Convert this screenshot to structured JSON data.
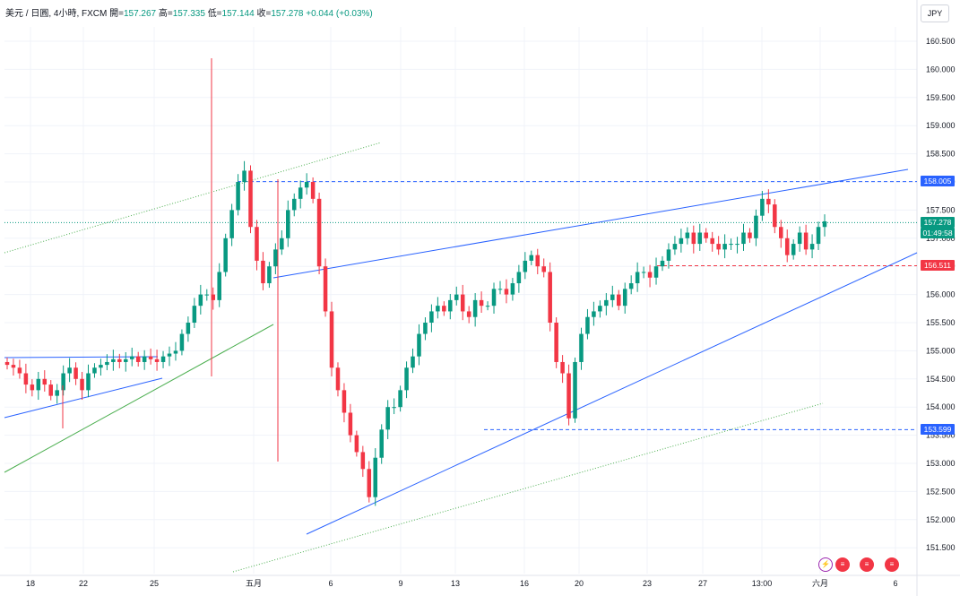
{
  "header": {
    "symbol": "美元 / 日圓, 4小時, FXCM",
    "open_label": "開=",
    "open": "157.267",
    "high_label": "高=",
    "high": "157.335",
    "low_label": "低=",
    "low": "157.144",
    "close_label": "收=",
    "close": "157.278",
    "change": "+0.044 (+0.03%)"
  },
  "currency_button": "JPY",
  "price_axis": {
    "ticks": [
      "160.500",
      "160.000",
      "159.500",
      "159.000",
      "158.500",
      "158.000",
      "157.500",
      "157.000",
      "156.500",
      "156.000",
      "155.500",
      "155.000",
      "154.500",
      "154.000",
      "153.500",
      "153.000",
      "152.500",
      "152.000",
      "151.500"
    ]
  },
  "price_tags": {
    "level_high": "158.005",
    "current_price": "157.278",
    "countdown": "01:49:58",
    "level_mid": "156.511",
    "level_low": "153.599"
  },
  "time_axis": {
    "labels": [
      "18",
      "22",
      "25",
      "五月",
      "6",
      "9",
      "13",
      "16",
      "20",
      "23",
      "27",
      "13:00",
      "六月",
      "6"
    ]
  },
  "event_icons": [
    "lightning-icon",
    "us-flag-icon",
    "us-flag-icon",
    "us-flag-icon"
  ],
  "colors": {
    "up": "#089981",
    "down": "#f23645",
    "trendline": "#2962ff",
    "green_line": "#4caf50",
    "green_dotted": "#4caf50"
  },
  "chart_data": {
    "type": "candlestick",
    "title": "",
    "xlabel": "",
    "ylabel": "",
    "ylim": [
      151.2,
      160.8
    ],
    "price_levels": [
      158.005,
      156.511,
      153.599
    ],
    "last_price": 157.278,
    "closes": [
      154.75,
      154.7,
      154.6,
      154.4,
      154.3,
      154.5,
      154.4,
      154.2,
      154.3,
      154.6,
      154.7,
      154.5,
      154.3,
      154.6,
      154.7,
      154.75,
      154.8,
      154.85,
      154.8,
      154.85,
      154.9,
      154.8,
      154.9,
      154.85,
      154.8,
      154.9,
      154.95,
      155.0,
      155.3,
      155.5,
      155.8,
      156.0,
      156.0,
      155.9,
      156.4,
      157.0,
      157.5,
      158.0,
      158.2,
      157.2,
      156.6,
      156.2,
      156.5,
      156.8,
      157.0,
      157.5,
      157.7,
      157.9,
      158.0,
      157.7,
      156.5,
      155.7,
      154.7,
      154.3,
      153.9,
      153.5,
      153.2,
      152.9,
      152.4,
      153.1,
      153.6,
      154.0,
      154.0,
      154.3,
      154.7,
      154.9,
      155.3,
      155.5,
      155.7,
      155.8,
      155.7,
      155.9,
      156.0,
      155.7,
      155.6,
      155.9,
      155.8,
      155.8,
      156.1,
      156.1,
      156.0,
      156.2,
      156.4,
      156.6,
      156.7,
      156.5,
      156.4,
      155.5,
      154.8,
      154.6,
      153.8,
      154.8,
      155.3,
      155.6,
      155.7,
      155.8,
      155.9,
      156.0,
      155.8,
      156.1,
      156.2,
      156.4,
      156.4,
      156.3,
      156.5,
      156.6,
      156.8,
      156.9,
      157.0,
      157.1,
      156.9,
      157.1,
      157.0,
      156.9,
      156.8,
      156.9,
      156.9,
      156.9,
      157.1,
      157.0,
      157.4,
      157.7,
      157.6,
      157.2,
      157.0,
      156.7,
      156.9,
      157.1,
      156.8,
      156.9,
      157.2,
      157.3
    ]
  }
}
